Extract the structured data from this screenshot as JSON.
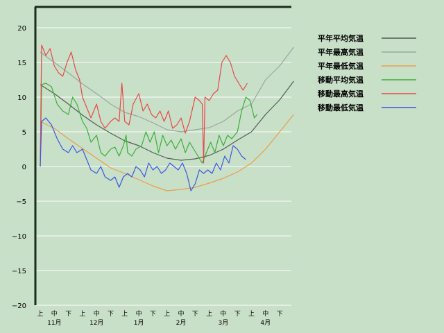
{
  "chart_data": {
    "type": "line",
    "ylim": [
      -20,
      23
    ],
    "yticks": [
      20,
      15,
      10,
      5,
      0,
      -5,
      -10,
      -15,
      -20
    ],
    "ytick_labels": [
      "20",
      "15",
      "10",
      "5",
      "0",
      "−5",
      "−10",
      "−15",
      "−20"
    ],
    "grid": true,
    "legend_position": "top-right",
    "x_sublabels": [
      "上",
      "中",
      "下"
    ],
    "months": [
      "11月",
      "12月",
      "1月",
      "2月",
      "3月",
      "4月"
    ],
    "x_unit": "dekad (旬) index, 0 = start of 11月",
    "xlim": [
      0,
      18
    ],
    "series": [
      {
        "name": "平年平均気温",
        "color": "#4f5f4f",
        "points": [
          [
            0,
            11.8
          ],
          [
            1,
            10.5
          ],
          [
            2,
            9.0
          ],
          [
            3,
            7.4
          ],
          [
            4,
            6.0
          ],
          [
            5,
            4.8
          ],
          [
            6,
            3.7
          ],
          [
            7,
            3.0
          ],
          [
            8,
            2.0
          ],
          [
            9,
            1.2
          ],
          [
            10,
            0.9
          ],
          [
            11,
            1.1
          ],
          [
            12,
            1.6
          ],
          [
            13,
            2.5
          ],
          [
            14,
            3.8
          ],
          [
            15,
            5.0
          ],
          [
            16,
            7.5
          ],
          [
            17,
            9.6
          ],
          [
            18,
            12.3
          ]
        ]
      },
      {
        "name": "平年最高気温",
        "color": "#9aa89a",
        "points": [
          [
            0,
            16.5
          ],
          [
            1,
            15.0
          ],
          [
            2,
            13.5
          ],
          [
            3,
            11.9
          ],
          [
            4,
            10.5
          ],
          [
            5,
            9.0
          ],
          [
            6,
            7.8
          ],
          [
            7,
            7.2
          ],
          [
            8,
            6.3
          ],
          [
            9,
            5.3
          ],
          [
            10,
            5.0
          ],
          [
            11,
            5.3
          ],
          [
            12,
            5.6
          ],
          [
            13,
            6.5
          ],
          [
            14,
            8.0
          ],
          [
            15,
            9.0
          ],
          [
            16,
            12.5
          ],
          [
            17,
            14.5
          ],
          [
            18,
            17.2
          ]
        ]
      },
      {
        "name": "平年最低気温",
        "color": "#e8a048",
        "points": [
          [
            0,
            6.5
          ],
          [
            1,
            5.5
          ],
          [
            2,
            4.0
          ],
          [
            3,
            2.6
          ],
          [
            4,
            1.2
          ],
          [
            5,
            -0.2
          ],
          [
            6,
            -1.0
          ],
          [
            7,
            -1.9
          ],
          [
            8,
            -2.8
          ],
          [
            9,
            -3.5
          ],
          [
            10,
            -3.3
          ],
          [
            11,
            -3.0
          ],
          [
            12,
            -2.4
          ],
          [
            13,
            -1.7
          ],
          [
            14,
            -0.8
          ],
          [
            15,
            0.5
          ],
          [
            16,
            2.5
          ],
          [
            17,
            5.0
          ],
          [
            18,
            7.5
          ]
        ]
      },
      {
        "name": "移動平均気温",
        "color": "#38b038",
        "points": [
          [
            0,
            0
          ],
          [
            0.1,
            11.8
          ],
          [
            0.4,
            12.0
          ],
          [
            0.8,
            11.5
          ],
          [
            1.2,
            9.0
          ],
          [
            1.6,
            8.0
          ],
          [
            2.0,
            7.5
          ],
          [
            2.3,
            10.0
          ],
          [
            2.6,
            9.0
          ],
          [
            3.0,
            6.5
          ],
          [
            3.3,
            5.5
          ],
          [
            3.6,
            3.5
          ],
          [
            4.0,
            4.5
          ],
          [
            4.3,
            2.0
          ],
          [
            4.6,
            1.5
          ],
          [
            5.0,
            2.5
          ],
          [
            5.3,
            2.8
          ],
          [
            5.6,
            1.5
          ],
          [
            5.9,
            3.0
          ],
          [
            6.1,
            4.5
          ],
          [
            6.2,
            2.0
          ],
          [
            6.5,
            1.5
          ],
          [
            6.8,
            2.5
          ],
          [
            7.2,
            3.0
          ],
          [
            7.5,
            5.0
          ],
          [
            7.8,
            3.5
          ],
          [
            8.1,
            5.0
          ],
          [
            8.4,
            2.0
          ],
          [
            8.7,
            4.5
          ],
          [
            9.0,
            3.0
          ],
          [
            9.3,
            3.8
          ],
          [
            9.6,
            2.5
          ],
          [
            10.0,
            4.0
          ],
          [
            10.3,
            2.0
          ],
          [
            10.6,
            3.5
          ],
          [
            10.9,
            2.5
          ],
          [
            11.2,
            1.5
          ],
          [
            11.5,
            0.5
          ],
          [
            11.8,
            2.0
          ],
          [
            12.1,
            3.5
          ],
          [
            12.4,
            2.0
          ],
          [
            12.7,
            4.5
          ],
          [
            13.0,
            3.0
          ],
          [
            13.3,
            4.5
          ],
          [
            13.6,
            4.0
          ],
          [
            14.0,
            5.0
          ],
          [
            14.3,
            8.0
          ],
          [
            14.6,
            10.0
          ],
          [
            14.9,
            9.5
          ],
          [
            15.2,
            7.0
          ],
          [
            15.4,
            7.5
          ]
        ]
      },
      {
        "name": "移動最高気温",
        "color": "#e84848",
        "points": [
          [
            0,
            0
          ],
          [
            0.1,
            17.5
          ],
          [
            0.4,
            16.0
          ],
          [
            0.7,
            17.0
          ],
          [
            1.0,
            14.5
          ],
          [
            1.3,
            13.5
          ],
          [
            1.6,
            13.0
          ],
          [
            1.9,
            15.0
          ],
          [
            2.2,
            16.5
          ],
          [
            2.5,
            14.0
          ],
          [
            2.8,
            12.5
          ],
          [
            3.0,
            10.0
          ],
          [
            3.3,
            8.5
          ],
          [
            3.6,
            7.0
          ],
          [
            4.0,
            9.0
          ],
          [
            4.3,
            6.5
          ],
          [
            4.6,
            5.5
          ],
          [
            5.0,
            6.5
          ],
          [
            5.3,
            7.0
          ],
          [
            5.6,
            6.5
          ],
          [
            5.8,
            12.0
          ],
          [
            6.0,
            6.5
          ],
          [
            6.3,
            6.0
          ],
          [
            6.6,
            9.0
          ],
          [
            7.0,
            10.5
          ],
          [
            7.3,
            8.0
          ],
          [
            7.6,
            9.0
          ],
          [
            7.9,
            7.5
          ],
          [
            8.2,
            7.0
          ],
          [
            8.5,
            8.0
          ],
          [
            8.8,
            6.5
          ],
          [
            9.1,
            8.0
          ],
          [
            9.4,
            5.5
          ],
          [
            9.7,
            6.0
          ],
          [
            10.0,
            7.0
          ],
          [
            10.3,
            4.8
          ],
          [
            10.6,
            6.5
          ],
          [
            11.0,
            10.0
          ],
          [
            11.3,
            9.5
          ],
          [
            11.5,
            9.0
          ],
          [
            11.6,
            0.5
          ],
          [
            11.7,
            10.0
          ],
          [
            12.0,
            9.5
          ],
          [
            12.3,
            10.5
          ],
          [
            12.6,
            11.0
          ],
          [
            12.9,
            15.0
          ],
          [
            13.2,
            16.0
          ],
          [
            13.5,
            15.0
          ],
          [
            13.8,
            13.0
          ],
          [
            14.1,
            12.0
          ],
          [
            14.4,
            11.0
          ],
          [
            14.7,
            12.0
          ]
        ]
      },
      {
        "name": "移動最低気温",
        "color": "#3a56e0",
        "points": [
          [
            0,
            0
          ],
          [
            0.1,
            6.5
          ],
          [
            0.4,
            7.0
          ],
          [
            0.8,
            6.0
          ],
          [
            1.2,
            4.0
          ],
          [
            1.6,
            2.5
          ],
          [
            2.0,
            2.0
          ],
          [
            2.3,
            3.0
          ],
          [
            2.6,
            2.0
          ],
          [
            3.0,
            2.5
          ],
          [
            3.3,
            1.0
          ],
          [
            3.6,
            -0.5
          ],
          [
            4.0,
            -1.0
          ],
          [
            4.3,
            0.0
          ],
          [
            4.6,
            -1.5
          ],
          [
            5.0,
            -2.0
          ],
          [
            5.3,
            -1.5
          ],
          [
            5.6,
            -3.0
          ],
          [
            5.9,
            -1.5
          ],
          [
            6.2,
            -1.0
          ],
          [
            6.5,
            -1.5
          ],
          [
            6.8,
            0.0
          ],
          [
            7.1,
            -0.5
          ],
          [
            7.4,
            -1.5
          ],
          [
            7.7,
            0.5
          ],
          [
            8.0,
            -0.5
          ],
          [
            8.3,
            0.0
          ],
          [
            8.6,
            -1.0
          ],
          [
            8.9,
            -0.5
          ],
          [
            9.2,
            0.5
          ],
          [
            9.5,
            0.0
          ],
          [
            9.8,
            -0.5
          ],
          [
            10.1,
            0.5
          ],
          [
            10.4,
            -1.0
          ],
          [
            10.7,
            -3.5
          ],
          [
            11.0,
            -2.5
          ],
          [
            11.3,
            -0.5
          ],
          [
            11.6,
            -1.0
          ],
          [
            11.9,
            -0.5
          ],
          [
            12.2,
            -1.0
          ],
          [
            12.5,
            0.5
          ],
          [
            12.8,
            -0.5
          ],
          [
            13.1,
            1.5
          ],
          [
            13.4,
            0.5
          ],
          [
            13.7,
            3.0
          ],
          [
            14.0,
            2.5
          ],
          [
            14.3,
            1.5
          ],
          [
            14.6,
            1.0
          ]
        ]
      }
    ]
  }
}
